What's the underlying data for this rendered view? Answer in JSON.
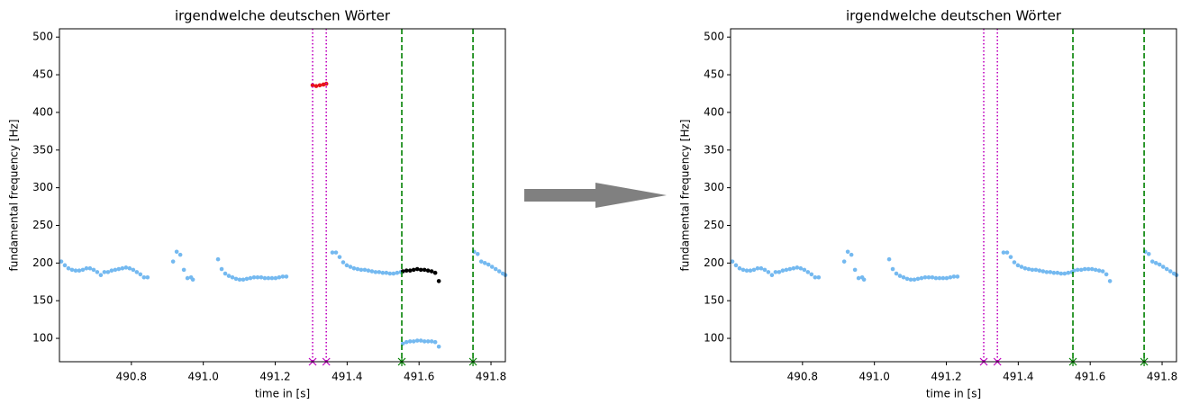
{
  "chart_data": [
    {
      "type": "scatter",
      "title": "irgendwelche deutschen Wörter",
      "x_label": "time in [s]",
      "y_label": "fundamental frequency [Hz]",
      "xlim": [
        490.6,
        491.84
      ],
      "ylim": [
        69,
        511
      ],
      "xticks": [
        490.8,
        {
          "value": 491,
          "label": "491.0"
        },
        491.2,
        491.4,
        491.6,
        491.8
      ],
      "yticks": [
        100,
        150,
        200,
        250,
        300,
        350,
        400,
        450,
        500
      ],
      "series": [
        {
          "color": "#74b9f0",
          "x": [
            490.605,
            490.615,
            490.625,
            490.635,
            490.645,
            490.655,
            490.665,
            490.675,
            490.685,
            490.695,
            490.705,
            490.715,
            490.725,
            490.735,
            490.745,
            490.755,
            490.765,
            490.775,
            490.785,
            490.795,
            490.805,
            490.815,
            490.825,
            490.835,
            490.845,
            490.916,
            490.926,
            490.936,
            490.946,
            490.956,
            490.966,
            490.971,
            491.041,
            491.051,
            491.061,
            491.071,
            491.081,
            491.091,
            491.101,
            491.111,
            491.121,
            491.131,
            491.141,
            491.151,
            491.161,
            491.171,
            491.181,
            491.191,
            491.201,
            491.211,
            491.221,
            491.231,
            491.359,
            491.369,
            491.379,
            491.389,
            491.399,
            491.409,
            491.419,
            491.429,
            491.439,
            491.449,
            491.459,
            491.469,
            491.479,
            491.489,
            491.499,
            491.509,
            491.519,
            491.529,
            491.539,
            491.549,
            491.555,
            491.565,
            491.575,
            491.585,
            491.595,
            491.605,
            491.615,
            491.625,
            491.635,
            491.645,
            491.655,
            491.753,
            491.763,
            491.773,
            491.783,
            491.793,
            491.803,
            491.813,
            491.823,
            491.833,
            491.84
          ],
          "values": [
            202,
            197,
            193,
            191,
            190,
            190,
            191,
            193,
            193,
            191,
            188,
            184,
            188,
            188,
            190,
            191,
            192,
            193,
            194,
            193,
            191,
            188,
            185,
            181,
            181,
            202,
            215,
            211,
            191,
            180,
            181,
            178,
            205,
            192,
            186,
            183,
            181,
            179,
            178,
            178,
            179,
            180,
            181,
            181,
            181,
            180,
            180,
            180,
            180,
            181,
            182,
            182,
            214,
            214,
            208,
            201,
            197,
            195,
            193,
            192,
            191,
            191,
            190,
            189,
            188,
            188,
            187,
            187,
            186,
            186,
            187,
            188,
            93,
            95,
            96,
            96,
            97,
            97,
            96,
            96,
            96,
            95,
            89,
            215,
            212,
            202,
            200,
            198,
            195,
            192,
            189,
            186,
            184
          ]
        },
        {
          "color": "#000000",
          "x": [
            491.555,
            491.565,
            491.575,
            491.585,
            491.595,
            491.605,
            491.615,
            491.625,
            491.635,
            491.645,
            491.655
          ],
          "values": [
            189,
            190,
            190,
            191,
            192,
            191,
            191,
            190,
            189,
            187,
            176
          ]
        },
        {
          "color": "#e8141a",
          "x": [
            491.304,
            491.314,
            491.324,
            491.334,
            491.342
          ],
          "values": [
            436,
            435,
            436,
            437,
            438
          ]
        }
      ],
      "vlines": [
        {
          "x": 491.304,
          "color": "#bf00bf",
          "style": "dotted",
          "marker": "x"
        },
        {
          "x": 491.342,
          "color": "#bf00bf",
          "style": "dotted",
          "marker": "x"
        },
        {
          "x": 491.552,
          "color": "#008000",
          "style": "dashed",
          "marker": "star"
        },
        {
          "x": 491.75,
          "color": "#008000",
          "style": "dashed",
          "marker": "star"
        }
      ]
    },
    {
      "type": "scatter",
      "title": "irgendwelche deutschen Wörter",
      "x_label": "time in [s]",
      "y_label": "fundamental frequency [Hz]",
      "xlim": [
        490.6,
        491.84
      ],
      "ylim": [
        69,
        511
      ],
      "xticks": [
        490.8,
        {
          "value": 491,
          "label": "491.0"
        },
        491.2,
        491.4,
        491.6,
        491.8
      ],
      "yticks": [
        100,
        150,
        200,
        250,
        300,
        350,
        400,
        450,
        500
      ],
      "series": [
        {
          "color": "#74b9f0",
          "x": [
            490.605,
            490.615,
            490.625,
            490.635,
            490.645,
            490.655,
            490.665,
            490.675,
            490.685,
            490.695,
            490.705,
            490.715,
            490.725,
            490.735,
            490.745,
            490.755,
            490.765,
            490.775,
            490.785,
            490.795,
            490.805,
            490.815,
            490.825,
            490.835,
            490.845,
            490.916,
            490.926,
            490.936,
            490.946,
            490.956,
            490.966,
            490.971,
            491.041,
            491.051,
            491.061,
            491.071,
            491.081,
            491.091,
            491.101,
            491.111,
            491.121,
            491.131,
            491.141,
            491.151,
            491.161,
            491.171,
            491.181,
            491.191,
            491.201,
            491.211,
            491.221,
            491.231,
            491.359,
            491.369,
            491.379,
            491.389,
            491.399,
            491.409,
            491.419,
            491.429,
            491.439,
            491.449,
            491.459,
            491.469,
            491.479,
            491.489,
            491.499,
            491.509,
            491.519,
            491.529,
            491.539,
            491.549,
            491.555,
            491.565,
            491.575,
            491.585,
            491.595,
            491.605,
            491.615,
            491.625,
            491.635,
            491.645,
            491.655,
            491.753,
            491.763,
            491.773,
            491.783,
            491.793,
            491.803,
            491.813,
            491.823,
            491.833,
            491.84
          ],
          "values": [
            202,
            197,
            193,
            191,
            190,
            190,
            191,
            193,
            193,
            191,
            188,
            184,
            188,
            188,
            190,
            191,
            192,
            193,
            194,
            193,
            191,
            188,
            185,
            181,
            181,
            202,
            215,
            211,
            191,
            180,
            181,
            178,
            205,
            192,
            186,
            183,
            181,
            179,
            178,
            178,
            179,
            180,
            181,
            181,
            181,
            180,
            180,
            180,
            180,
            181,
            182,
            182,
            214,
            214,
            208,
            201,
            197,
            195,
            193,
            192,
            191,
            191,
            190,
            189,
            188,
            188,
            187,
            187,
            186,
            186,
            187,
            188,
            190,
            191,
            191,
            192,
            192,
            192,
            191,
            190,
            189,
            185,
            176,
            215,
            212,
            202,
            200,
            198,
            195,
            192,
            189,
            186,
            184
          ]
        }
      ],
      "vlines": [
        {
          "x": 491.304,
          "color": "#bf00bf",
          "style": "dotted",
          "marker": "x"
        },
        {
          "x": 491.342,
          "color": "#bf00bf",
          "style": "dotted",
          "marker": "x"
        },
        {
          "x": 491.552,
          "color": "#008000",
          "style": "dashed",
          "marker": "star"
        },
        {
          "x": 491.75,
          "color": "#008000",
          "style": "dashed",
          "marker": "star"
        }
      ]
    }
  ]
}
